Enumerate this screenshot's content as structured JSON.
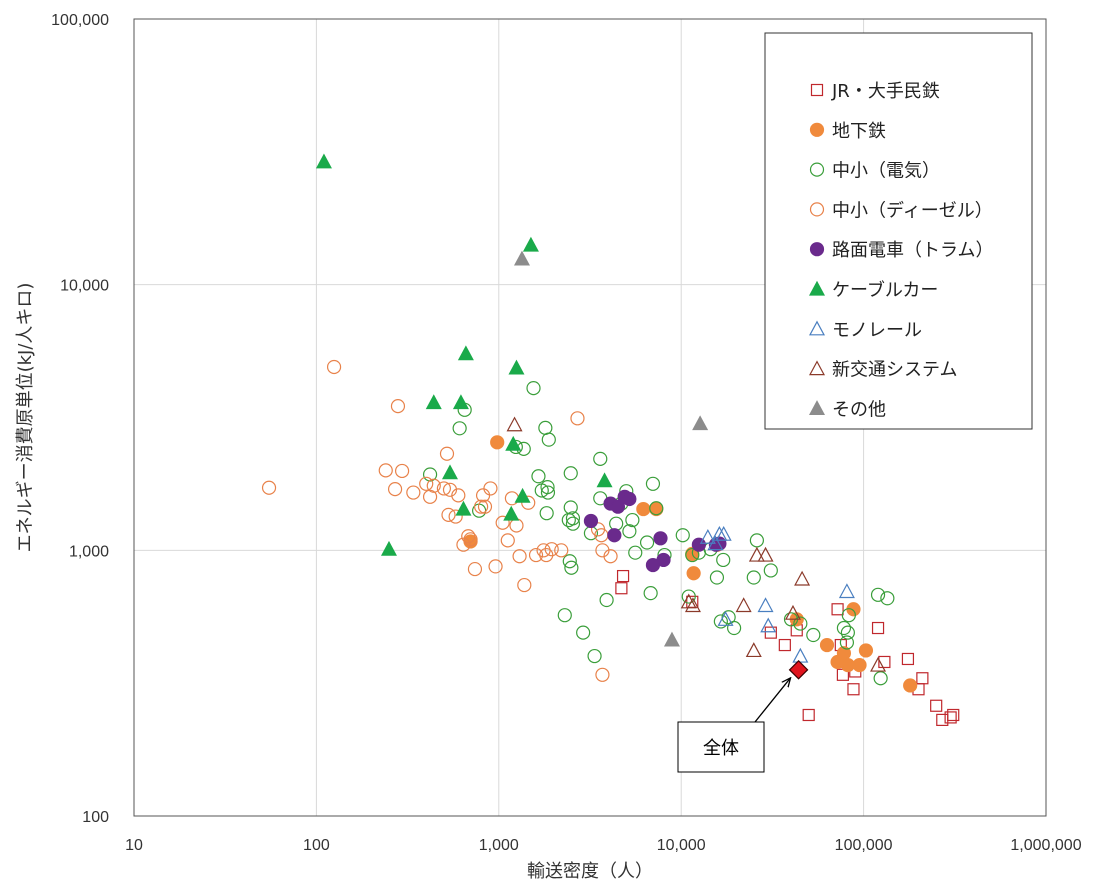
{
  "chart_data": {
    "type": "scatter",
    "xlabel": "輸送密度（人）",
    "ylabel": "エネルギー消費原単位(kJ/人キロ)",
    "xscale": "log",
    "yscale": "log",
    "xlim": [
      10,
      1000000
    ],
    "ylim": [
      100,
      100000
    ],
    "x_ticks": [
      "10",
      "100",
      "1,000",
      "10,000",
      "100,000",
      "1,000,000"
    ],
    "y_ticks": [
      "100",
      "1,000",
      "10,000",
      "100,000"
    ],
    "grid": "on",
    "legend_position": "top-right",
    "series": [
      {
        "name": "JR・大手民鉄",
        "marker": "square-open",
        "color": "#c0282d",
        "points": [
          [
            4700,
            720
          ],
          [
            4800,
            800
          ],
          [
            11500,
            640
          ],
          [
            31000,
            490
          ],
          [
            37000,
            440
          ],
          [
            43000,
            500
          ],
          [
            50000,
            240
          ],
          [
            72000,
            600
          ],
          [
            75000,
            440
          ],
          [
            77000,
            340
          ],
          [
            88000,
            300
          ],
          [
            90000,
            350
          ],
          [
            120000,
            510
          ],
          [
            130000,
            380
          ],
          [
            175000,
            390
          ],
          [
            200000,
            300
          ],
          [
            210000,
            330
          ],
          [
            250000,
            260
          ],
          [
            270000,
            230
          ],
          [
            300000,
            235
          ],
          [
            310000,
            240
          ]
        ]
      },
      {
        "name": "地下鉄",
        "color": "#f08a3c",
        "marker": "circle-filled",
        "points": [
          [
            980,
            2550
          ],
          [
            700,
            1080
          ],
          [
            6200,
            1430
          ],
          [
            7300,
            1430
          ],
          [
            11500,
            970
          ],
          [
            11700,
            820
          ],
          [
            15800,
            1050
          ],
          [
            43000,
            550
          ],
          [
            63000,
            440
          ],
          [
            72000,
            380
          ],
          [
            78000,
            410
          ],
          [
            82000,
            370
          ],
          [
            88000,
            600
          ],
          [
            95000,
            370
          ],
          [
            103000,
            420
          ],
          [
            180000,
            310
          ]
        ]
      },
      {
        "name": "中小（電気）",
        "color": "#3a9e3a",
        "marker": "circle-open",
        "points": [
          [
            420,
            1930
          ],
          [
            610,
            2880
          ],
          [
            650,
            3380
          ],
          [
            780,
            1410
          ],
          [
            1240,
            2450
          ],
          [
            1370,
            2410
          ],
          [
            1550,
            4080
          ],
          [
            1650,
            1900
          ],
          [
            1720,
            1680
          ],
          [
            1800,
            2890
          ],
          [
            1830,
            1380
          ],
          [
            1850,
            1730
          ],
          [
            1880,
            2610
          ],
          [
            1860,
            1650
          ],
          [
            2300,
            570
          ],
          [
            2420,
            1300
          ],
          [
            2480,
            1950
          ],
          [
            2500,
            860
          ],
          [
            2550,
            1260
          ],
          [
            2480,
            1450
          ],
          [
            2550,
            1320
          ],
          [
            2450,
            910
          ],
          [
            2900,
            490
          ],
          [
            3200,
            1160
          ],
          [
            3350,
            400
          ],
          [
            3600,
            2210
          ],
          [
            3600,
            1570
          ],
          [
            3900,
            650
          ],
          [
            4400,
            1260
          ],
          [
            4700,
            1500
          ],
          [
            5000,
            1670
          ],
          [
            5200,
            1180
          ],
          [
            5400,
            1300
          ],
          [
            5600,
            980
          ],
          [
            6500,
            1070
          ],
          [
            6800,
            690
          ],
          [
            7000,
            1780
          ],
          [
            7300,
            1440
          ],
          [
            8100,
            960
          ],
          [
            10200,
            1140
          ],
          [
            11000,
            670
          ],
          [
            11500,
            960
          ],
          [
            12500,
            980
          ],
          [
            14500,
            1010
          ],
          [
            15700,
            790
          ],
          [
            16500,
            540
          ],
          [
            17000,
            920
          ],
          [
            18200,
            560
          ],
          [
            19500,
            510
          ],
          [
            25000,
            790
          ],
          [
            26000,
            1090
          ],
          [
            31000,
            840
          ],
          [
            40000,
            550
          ],
          [
            45000,
            530
          ],
          [
            53000,
            480
          ],
          [
            78000,
            510
          ],
          [
            81000,
            450
          ],
          [
            82000,
            490
          ],
          [
            83000,
            570
          ],
          [
            120000,
            680
          ],
          [
            124000,
            330
          ],
          [
            135000,
            660
          ]
        ]
      },
      {
        "name": "中小（ディーゼル）",
        "color": "#e8824a",
        "marker": "circle-open",
        "points": [
          [
            55,
            1720
          ],
          [
            125,
            4900
          ],
          [
            240,
            2000
          ],
          [
            270,
            1700
          ],
          [
            280,
            3490
          ],
          [
            295,
            1990
          ],
          [
            340,
            1650
          ],
          [
            400,
            1780
          ],
          [
            420,
            1590
          ],
          [
            440,
            1750
          ],
          [
            500,
            1710
          ],
          [
            520,
            2310
          ],
          [
            530,
            1360
          ],
          [
            540,
            1690
          ],
          [
            580,
            1340
          ],
          [
            600,
            1610
          ],
          [
            640,
            1050
          ],
          [
            680,
            1130
          ],
          [
            700,
            1100
          ],
          [
            740,
            850
          ],
          [
            800,
            1460
          ],
          [
            820,
            1610
          ],
          [
            840,
            1460
          ],
          [
            900,
            1710
          ],
          [
            960,
            870
          ],
          [
            1050,
            1270
          ],
          [
            1120,
            1090
          ],
          [
            1180,
            1570
          ],
          [
            1250,
            1240
          ],
          [
            1300,
            950
          ],
          [
            1380,
            740
          ],
          [
            1450,
            1510
          ],
          [
            1600,
            960
          ],
          [
            1760,
            1000
          ],
          [
            1820,
            960
          ],
          [
            1950,
            1010
          ],
          [
            2200,
            1000
          ],
          [
            2700,
            3140
          ],
          [
            3500,
            1200
          ],
          [
            3650,
            1140
          ],
          [
            3700,
            1000
          ],
          [
            3700,
            340
          ],
          [
            4100,
            950
          ]
        ]
      },
      {
        "name": "路面電車（トラム）",
        "color": "#6a2a8c",
        "marker": "circle-filled",
        "points": [
          [
            3200,
            1290
          ],
          [
            4100,
            1500
          ],
          [
            4300,
            1140
          ],
          [
            4500,
            1460
          ],
          [
            4900,
            1590
          ],
          [
            5200,
            1560
          ],
          [
            7000,
            880
          ],
          [
            7700,
            1110
          ],
          [
            8000,
            920
          ],
          [
            12500,
            1050
          ],
          [
            15500,
            1050
          ],
          [
            16200,
            1060
          ]
        ]
      },
      {
        "name": "ケーブルカー",
        "color": "#1aaa4a",
        "marker": "triangle-filled",
        "points": [
          [
            110,
            29000
          ],
          [
            250,
            1010
          ],
          [
            440,
            3600
          ],
          [
            540,
            1960
          ],
          [
            620,
            3600
          ],
          [
            640,
            1430
          ],
          [
            660,
            5500
          ],
          [
            1170,
            1370
          ],
          [
            1200,
            2510
          ],
          [
            1250,
            4860
          ],
          [
            1350,
            1600
          ],
          [
            1500,
            14100
          ],
          [
            3800,
            1830
          ]
        ]
      },
      {
        "name": "モノレール",
        "color": "#4a7fc0",
        "marker": "triangle-open",
        "points": [
          [
            14000,
            1120
          ],
          [
            15400,
            1060
          ],
          [
            16200,
            1150
          ],
          [
            17100,
            1150
          ],
          [
            17500,
            550
          ],
          [
            29000,
            620
          ],
          [
            30000,
            520
          ],
          [
            45000,
            400
          ],
          [
            81000,
            700
          ]
        ]
      },
      {
        "name": "新交通システム",
        "color": "#8b3a2a",
        "marker": "triangle-open",
        "points": [
          [
            1220,
            2970
          ],
          [
            11000,
            640
          ],
          [
            11600,
            620
          ],
          [
            22000,
            620
          ],
          [
            25000,
            420
          ],
          [
            26000,
            960
          ],
          [
            29000,
            960
          ],
          [
            41000,
            580
          ],
          [
            46000,
            780
          ],
          [
            120000,
            370
          ]
        ]
      },
      {
        "name": "その他",
        "color": "#8c8c8c",
        "marker": "triangle-filled",
        "points": [
          [
            1340,
            12500
          ],
          [
            8900,
            460
          ],
          [
            12700,
            3000
          ]
        ]
      }
    ],
    "annotations": [
      {
        "text": "全体",
        "point": [
          44000,
          355
        ],
        "marker": "diamond-filled",
        "color": "#e0141e"
      }
    ]
  }
}
